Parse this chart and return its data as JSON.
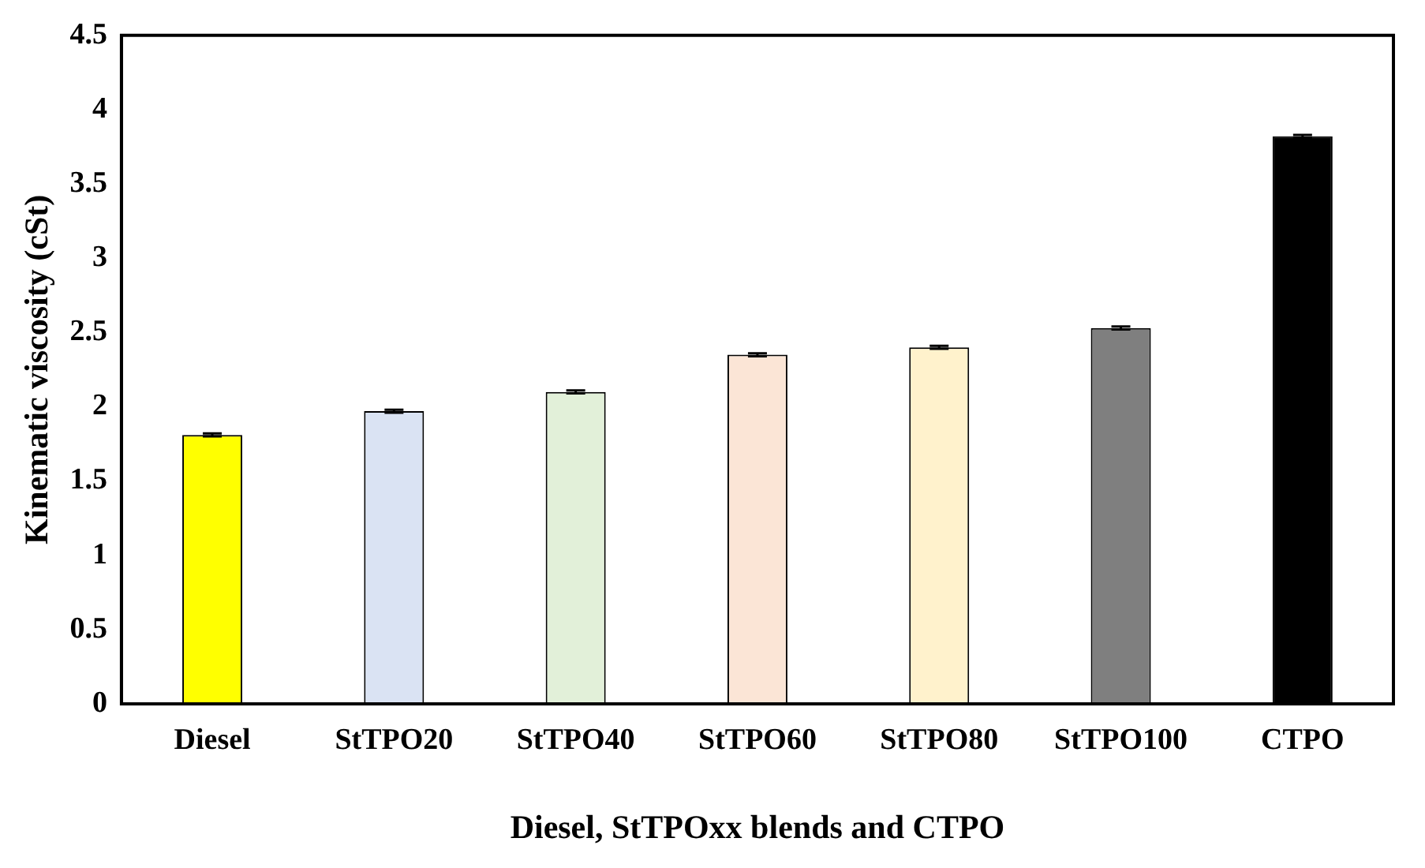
{
  "chart_data": {
    "type": "bar",
    "xlabel": "Diesel, StTPOxx blends and CTPO",
    "ylabel": "Kinematic viscosity (cSt)",
    "categories": [
      "Diesel",
      "StTPO20",
      "StTPO40",
      "StTPO60",
      "StTPO80",
      "StTPO100",
      "CTPO"
    ],
    "values": [
      1.81,
      1.97,
      2.1,
      2.35,
      2.4,
      2.53,
      3.82
    ],
    "errors": [
      0.01,
      0.01,
      0.01,
      0.01,
      0.01,
      0.01,
      0.01
    ],
    "colors": [
      "#ffff00",
      "#dae3f3",
      "#e2f0d9",
      "#fbe5d6",
      "#fff2cc",
      "#7f7f7f",
      "#000000"
    ],
    "ylim": [
      0,
      4.5
    ],
    "yticks": [
      0,
      0.5,
      1,
      1.5,
      2,
      2.5,
      3,
      3.5,
      4,
      4.5
    ],
    "grid": false,
    "legend": false
  }
}
